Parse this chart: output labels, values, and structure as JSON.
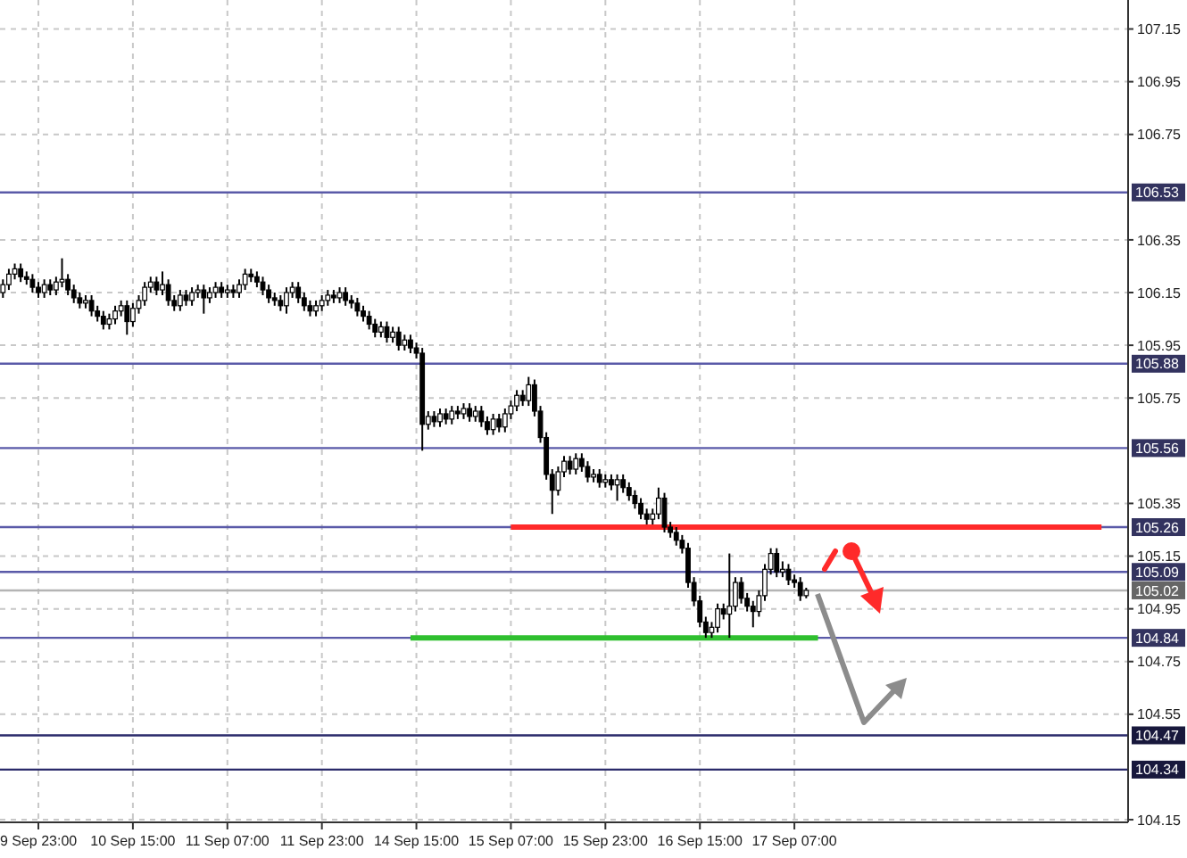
{
  "chart_data": {
    "type": "candlestick",
    "color": "#000000",
    "grid": true,
    "ylim": [
      104.14,
      107.26
    ],
    "yticks": [
      107.15,
      106.95,
      106.75,
      106.35,
      106.15,
      105.95,
      105.75,
      105.35,
      105.15,
      104.95,
      104.75,
      104.55,
      104.15
    ],
    "ref_lines": [
      {
        "axis": "y",
        "value": 106.53,
        "label": "106.53",
        "color": "#5a5aa8"
      },
      {
        "axis": "y",
        "value": 105.88,
        "label": "105.88",
        "color": "#5a5aa8"
      },
      {
        "axis": "y",
        "value": 105.56,
        "label": "105.56",
        "color": "#5a5aa8"
      },
      {
        "axis": "y",
        "value": 105.26,
        "label": "105.26",
        "color": "#5a5aa8"
      },
      {
        "axis": "y",
        "value": 105.09,
        "label": "105.09",
        "color": "#5a5aa8"
      },
      {
        "axis": "y",
        "value": 105.02,
        "label": "105.02",
        "color": "#b4b4b4"
      },
      {
        "axis": "y",
        "value": 104.84,
        "label": "104.84",
        "color": "#5a5aa8"
      },
      {
        "axis": "y",
        "value": 104.47,
        "label": "104.47",
        "color": "#2a2a6a"
      },
      {
        "axis": "y",
        "value": 104.34,
        "label": "104.34",
        "color": "#2a2a6a"
      }
    ],
    "series": [
      {
        "type": "line",
        "color": "#ff2a2a",
        "values": [
          null,
          null,
          null,
          null,
          null,
          null,
          null,
          null,
          null,
          null,
          null,
          null,
          null,
          null,
          null,
          null,
          null,
          null,
          null,
          null,
          null,
          null,
          null,
          null,
          null,
          null,
          null,
          null,
          null,
          null,
          null,
          null,
          null,
          null,
          null,
          null,
          null,
          null,
          null,
          null,
          null,
          null,
          null,
          null,
          null,
          null,
          null,
          null,
          null,
          null,
          null,
          null,
          null,
          null,
          null,
          null,
          null,
          null,
          null,
          null,
          null,
          null,
          null,
          null,
          null,
          null,
          null,
          null,
          null,
          null,
          null,
          null,
          null,
          null,
          null,
          null,
          null,
          null,
          null,
          null,
          null,
          null,
          null,
          null,
          null,
          null,
          105.26,
          105.26,
          105.26,
          105.26,
          105.26,
          105.26,
          105.26,
          105.26,
          105.26,
          105.26,
          105.26,
          105.26,
          105.26,
          105.26,
          105.26,
          105.26,
          105.26,
          105.26,
          105.26,
          105.26,
          105.26,
          105.26,
          105.26,
          105.26,
          105.26,
          105.26,
          105.26,
          105.26,
          105.26,
          105.26,
          105.26,
          105.26,
          105.26,
          105.26,
          105.26,
          105.26,
          105.26,
          105.26,
          105.26,
          105.26,
          105.26,
          105.26,
          105.26,
          105.26,
          105.26,
          105.26,
          105.26,
          105.26,
          105.26,
          105.26,
          105.26,
          105.26,
          105.26,
          105.26,
          105.26,
          105.26,
          105.26,
          105.26,
          105.26,
          105.26,
          105.26,
          105.26,
          105.26,
          105.26,
          105.26,
          105.26,
          105.26,
          105.26,
          105.26,
          105.26,
          105.26,
          105.26,
          105.26,
          105.26,
          105.26,
          105.26,
          105.26,
          105.26,
          105.26,
          105.26,
          105.26,
          105.26,
          105.26,
          105.26,
          105.26,
          105.26,
          105.26,
          105.26,
          105.26,
          105.26,
          105.26,
          105.26,
          105.26,
          105.26,
          105.26,
          105.26,
          105.26,
          105.26,
          105.26,
          105.26,
          105.26,
          null,
          null,
          null,
          null
        ]
      },
      {
        "type": "line",
        "color": "#2fbf2f",
        "values": [
          null,
          null,
          null,
          null,
          null,
          null,
          null,
          null,
          null,
          null,
          null,
          null,
          null,
          null,
          null,
          null,
          null,
          null,
          null,
          null,
          null,
          null,
          null,
          null,
          null,
          null,
          null,
          null,
          null,
          null,
          null,
          null,
          null,
          null,
          null,
          null,
          null,
          null,
          null,
          null,
          null,
          null,
          null,
          null,
          null,
          null,
          null,
          null,
          null,
          null,
          null,
          null,
          null,
          null,
          null,
          null,
          null,
          null,
          null,
          null,
          null,
          null,
          null,
          null,
          null,
          null,
          null,
          null,
          null,
          104.84,
          104.84,
          104.84,
          104.84,
          104.84,
          104.84,
          104.84,
          104.84,
          104.84,
          104.84,
          104.84,
          104.84,
          104.84,
          104.84,
          104.84,
          104.84,
          104.84,
          104.84,
          104.84,
          104.84,
          104.84,
          104.84,
          104.84,
          104.84,
          104.84,
          104.84,
          104.84,
          104.84,
          104.84,
          104.84,
          104.84,
          104.84,
          104.84,
          104.84,
          104.84,
          104.84,
          104.84,
          104.84,
          104.84,
          104.84,
          104.84,
          104.84,
          104.84,
          104.84,
          104.84,
          104.84,
          104.84,
          104.84,
          104.84,
          104.84,
          104.84,
          104.84,
          104.84,
          104.84,
          104.84,
          104.84,
          104.84,
          104.84,
          104.84,
          104.84,
          104.84,
          104.84,
          104.84,
          104.84,
          104.84,
          104.84,
          104.84,
          104.84,
          104.84,
          104.84,
          null,
          null,
          null,
          null,
          null,
          null,
          null,
          null,
          null,
          null,
          null,
          null,
          null,
          null,
          null,
          null,
          null,
          null,
          null,
          null,
          null,
          null,
          null,
          null,
          null,
          null,
          null,
          null,
          null,
          null,
          null,
          null,
          null,
          null,
          null,
          null,
          null,
          null,
          null,
          null,
          null,
          null,
          null,
          null,
          null,
          null,
          null,
          null,
          null,
          null,
          null,
          null
        ]
      }
    ],
    "categories": [
      null,
      null,
      null,
      null,
      null,
      null,
      "9 Sep 23:00",
      null,
      null,
      null,
      null,
      null,
      null,
      null,
      null,
      null,
      null,
      null,
      null,
      null,
      null,
      null,
      "10 Sep 15:00",
      null,
      null,
      null,
      null,
      null,
      null,
      null,
      null,
      null,
      null,
      null,
      null,
      null,
      null,
      null,
      "11 Sep 07:00",
      null,
      null,
      null,
      null,
      null,
      null,
      null,
      null,
      null,
      null,
      null,
      null,
      null,
      null,
      null,
      "11 Sep 23:00",
      null,
      null,
      null,
      null,
      null,
      null,
      null,
      null,
      null,
      null,
      null,
      null,
      null,
      null,
      null,
      "14 Sep 15:00",
      null,
      null,
      null,
      null,
      null,
      null,
      null,
      null,
      null,
      null,
      null,
      null,
      null,
      null,
      null,
      "15 Sep 07:00",
      null,
      null,
      null,
      null,
      null,
      null,
      null,
      null,
      null,
      null,
      null,
      null,
      null,
      null,
      null,
      "15 Sep 23:00",
      null,
      null,
      null,
      null,
      null,
      null,
      null,
      null,
      null,
      null,
      null,
      null,
      null,
      null,
      null,
      "16 Sep 15:00",
      null,
      null,
      null,
      null,
      null,
      null,
      null,
      null,
      null,
      null,
      null,
      null,
      null,
      null,
      null,
      "17 Sep 07:00",
      null,
      null,
      null,
      null,
      null,
      null,
      null,
      null,
      null,
      null,
      null,
      null,
      null,
      null,
      null,
      null,
      null,
      null,
      null,
      null,
      null,
      null,
      null,
      null,
      null,
      null,
      null,
      null,
      null,
      null,
      null,
      null,
      null,
      null,
      null,
      null,
      null,
      null,
      null,
      null,
      null,
      null,
      null,
      null,
      null,
      null,
      null,
      null,
      null,
      null,
      null,
      null,
      null,
      null,
      null,
      null
    ],
    "ohlc": [
      [
        106.15,
        106.2,
        106.13,
        106.18
      ],
      [
        106.18,
        106.24,
        106.16,
        106.22
      ],
      [
        106.22,
        106.26,
        106.2,
        106.24
      ],
      [
        106.24,
        106.26,
        106.19,
        106.21
      ],
      [
        106.21,
        106.23,
        106.18,
        106.2
      ],
      [
        106.2,
        106.22,
        106.15,
        106.17
      ],
      [
        106.17,
        106.19,
        106.13,
        106.15
      ],
      [
        106.15,
        106.2,
        106.13,
        106.18
      ],
      [
        106.18,
        106.2,
        106.14,
        106.16
      ],
      [
        106.16,
        106.21,
        106.14,
        106.19
      ],
      [
        106.19,
        106.28,
        106.17,
        106.2
      ],
      [
        106.2,
        106.22,
        106.14,
        106.16
      ],
      [
        106.16,
        106.18,
        106.11,
        106.13
      ],
      [
        106.13,
        106.15,
        106.09,
        106.11
      ],
      [
        106.11,
        106.14,
        106.09,
        106.12
      ],
      [
        106.12,
        106.14,
        106.06,
        106.08
      ],
      [
        106.08,
        106.1,
        106.04,
        106.06
      ],
      [
        106.06,
        106.08,
        106.01,
        106.03
      ],
      [
        106.03,
        106.07,
        106.01,
        106.05
      ],
      [
        106.05,
        106.1,
        106.03,
        106.08
      ],
      [
        106.08,
        106.12,
        106.06,
        106.1
      ],
      [
        106.1,
        106.12,
        105.99,
        106.04
      ],
      [
        106.04,
        106.11,
        106.02,
        106.09
      ],
      [
        106.09,
        106.14,
        106.07,
        106.12
      ],
      [
        106.12,
        106.19,
        106.1,
        106.17
      ],
      [
        106.17,
        106.21,
        106.15,
        106.19
      ],
      [
        106.19,
        106.21,
        106.14,
        106.16
      ],
      [
        106.16,
        106.23,
        106.14,
        106.18
      ],
      [
        106.18,
        106.2,
        106.1,
        106.12
      ],
      [
        106.12,
        106.14,
        106.08,
        106.1
      ],
      [
        106.1,
        106.16,
        106.08,
        106.14
      ],
      [
        106.14,
        106.16,
        106.1,
        106.12
      ],
      [
        106.12,
        106.17,
        106.1,
        106.15
      ],
      [
        106.15,
        106.18,
        106.13,
        106.16
      ],
      [
        106.16,
        106.18,
        106.07,
        106.13
      ],
      [
        106.13,
        106.17,
        106.11,
        106.15
      ],
      [
        106.15,
        106.19,
        106.13,
        106.17
      ],
      [
        106.17,
        106.19,
        106.13,
        106.15
      ],
      [
        106.15,
        106.18,
        106.13,
        106.16
      ],
      [
        106.16,
        106.18,
        106.13,
        106.15
      ],
      [
        106.15,
        106.2,
        106.13,
        106.18
      ],
      [
        106.18,
        106.24,
        106.16,
        106.22
      ],
      [
        106.22,
        106.24,
        106.19,
        106.21
      ],
      [
        106.21,
        106.23,
        106.17,
        106.19
      ],
      [
        106.19,
        106.21,
        106.14,
        106.16
      ],
      [
        106.16,
        106.18,
        106.11,
        106.13
      ],
      [
        106.13,
        106.15,
        106.1,
        106.12
      ],
      [
        106.12,
        106.14,
        106.08,
        106.1
      ],
      [
        106.1,
        106.17,
        106.07,
        106.15
      ],
      [
        106.15,
        106.19,
        106.13,
        106.17
      ],
      [
        106.17,
        106.19,
        106.11,
        106.13
      ],
      [
        106.13,
        106.15,
        106.08,
        106.1
      ],
      [
        106.1,
        106.12,
        106.06,
        106.08
      ],
      [
        106.08,
        106.12,
        106.06,
        106.1
      ],
      [
        106.1,
        106.14,
        106.08,
        106.12
      ],
      [
        106.12,
        106.16,
        106.1,
        106.14
      ],
      [
        106.14,
        106.16,
        106.11,
        106.13
      ],
      [
        106.13,
        106.17,
        106.11,
        106.15
      ],
      [
        106.15,
        106.17,
        106.1,
        106.12
      ],
      [
        106.12,
        106.14,
        106.09,
        106.11
      ],
      [
        106.11,
        106.13,
        106.06,
        106.08
      ],
      [
        106.08,
        106.1,
        106.04,
        106.06
      ],
      [
        106.06,
        106.08,
        106.01,
        106.03
      ],
      [
        106.03,
        106.05,
        105.98,
        106.0
      ],
      [
        106.0,
        106.04,
        105.98,
        106.02
      ],
      [
        106.02,
        106.04,
        105.96,
        105.98
      ],
      [
        105.98,
        106.02,
        105.96,
        106.0
      ],
      [
        106.0,
        106.02,
        105.93,
        105.95
      ],
      [
        105.95,
        105.99,
        105.93,
        105.97
      ],
      [
        105.97,
        105.99,
        105.92,
        105.94
      ],
      [
        105.94,
        105.96,
        105.9,
        105.92
      ],
      [
        105.92,
        105.94,
        105.55,
        105.65
      ],
      [
        105.65,
        105.7,
        105.63,
        105.68
      ],
      [
        105.68,
        105.7,
        105.64,
        105.66
      ],
      [
        105.66,
        105.71,
        105.64,
        105.69
      ],
      [
        105.69,
        105.71,
        105.65,
        105.67
      ],
      [
        105.67,
        105.72,
        105.65,
        105.7
      ],
      [
        105.7,
        105.72,
        105.67,
        105.69
      ],
      [
        105.69,
        105.73,
        105.67,
        105.71
      ],
      [
        105.71,
        105.73,
        105.66,
        105.68
      ],
      [
        105.68,
        105.72,
        105.66,
        105.7
      ],
      [
        105.7,
        105.72,
        105.64,
        105.66
      ],
      [
        105.66,
        105.68,
        105.61,
        105.63
      ],
      [
        105.63,
        105.69,
        105.61,
        105.67
      ],
      [
        105.67,
        105.69,
        105.62,
        105.64
      ],
      [
        105.64,
        105.71,
        105.62,
        105.69
      ],
      [
        105.69,
        105.74,
        105.67,
        105.72
      ],
      [
        105.72,
        105.78,
        105.7,
        105.76
      ],
      [
        105.76,
        105.78,
        105.72,
        105.74
      ],
      [
        105.74,
        105.83,
        105.72,
        105.8
      ],
      [
        105.8,
        105.82,
        105.68,
        105.7
      ],
      [
        105.7,
        105.72,
        105.58,
        105.6
      ],
      [
        105.6,
        105.62,
        105.44,
        105.46
      ],
      [
        105.46,
        105.48,
        105.31,
        105.4
      ],
      [
        105.4,
        105.49,
        105.38,
        105.47
      ],
      [
        105.47,
        105.53,
        105.45,
        105.51
      ],
      [
        105.51,
        105.53,
        105.46,
        105.48
      ],
      [
        105.48,
        105.54,
        105.46,
        105.52
      ],
      [
        105.52,
        105.54,
        105.47,
        105.49
      ],
      [
        105.49,
        105.51,
        105.43,
        105.45
      ],
      [
        105.45,
        105.48,
        105.43,
        105.46
      ],
      [
        105.46,
        105.48,
        105.41,
        105.43
      ],
      [
        105.43,
        105.46,
        105.41,
        105.44
      ],
      [
        105.44,
        105.46,
        105.4,
        105.42
      ],
      [
        105.42,
        105.46,
        105.36,
        105.44
      ],
      [
        105.44,
        105.46,
        105.39,
        105.41
      ],
      [
        105.41,
        105.43,
        105.36,
        105.38
      ],
      [
        105.38,
        105.4,
        105.33,
        105.35
      ],
      [
        105.35,
        105.37,
        105.29,
        105.31
      ],
      [
        105.31,
        105.33,
        105.27,
        105.29
      ],
      [
        105.29,
        105.33,
        105.27,
        105.31
      ],
      [
        105.31,
        105.41,
        105.29,
        105.37
      ],
      [
        105.37,
        105.39,
        105.24,
        105.26
      ],
      [
        105.26,
        105.28,
        105.22,
        105.24
      ],
      [
        105.24,
        105.26,
        105.19,
        105.21
      ],
      [
        105.21,
        105.23,
        105.16,
        105.18
      ],
      [
        105.18,
        105.2,
        105.03,
        105.05
      ],
      [
        105.05,
        105.07,
        104.96,
        104.98
      ],
      [
        104.98,
        105.0,
        104.88,
        104.9
      ],
      [
        104.9,
        104.92,
        104.84,
        104.86
      ],
      [
        104.86,
        104.9,
        104.84,
        104.88
      ],
      [
        104.88,
        104.97,
        104.86,
        104.95
      ],
      [
        104.95,
        104.97,
        104.91,
        104.93
      ],
      [
        104.93,
        105.16,
        104.84,
        104.96
      ],
      [
        104.96,
        105.07,
        104.94,
        105.05
      ],
      [
        105.05,
        105.07,
        104.97,
        104.99
      ],
      [
        104.99,
        105.01,
        104.94,
        104.96
      ],
      [
        104.96,
        104.98,
        104.88,
        104.94
      ],
      [
        104.94,
        105.02,
        104.92,
        105.0
      ],
      [
        105.0,
        105.12,
        104.98,
        105.1
      ],
      [
        105.1,
        105.18,
        105.08,
        105.16
      ],
      [
        105.16,
        105.18,
        105.07,
        105.09
      ],
      [
        105.09,
        105.13,
        105.07,
        105.1
      ],
      [
        105.1,
        105.12,
        105.04,
        105.06
      ],
      [
        105.06,
        105.08,
        105.03,
        105.05
      ],
      [
        105.05,
        105.07,
        104.98,
        105.0
      ],
      [
        105.0,
        105.03,
        104.99,
        105.02
      ],
      null,
      null,
      null,
      null,
      null,
      null,
      null,
      null,
      null,
      null,
      null,
      null,
      null,
      null,
      null,
      null,
      null,
      null,
      null,
      null,
      null,
      null,
      null,
      null,
      null,
      null,
      null,
      null,
      null,
      null,
      null,
      null,
      null,
      null,
      null,
      null,
      null,
      null,
      null,
      null,
      null,
      null,
      null,
      null,
      null,
      null,
      null,
      null,
      null,
      null,
      null,
      null,
      null,
      null
    ]
  }
}
